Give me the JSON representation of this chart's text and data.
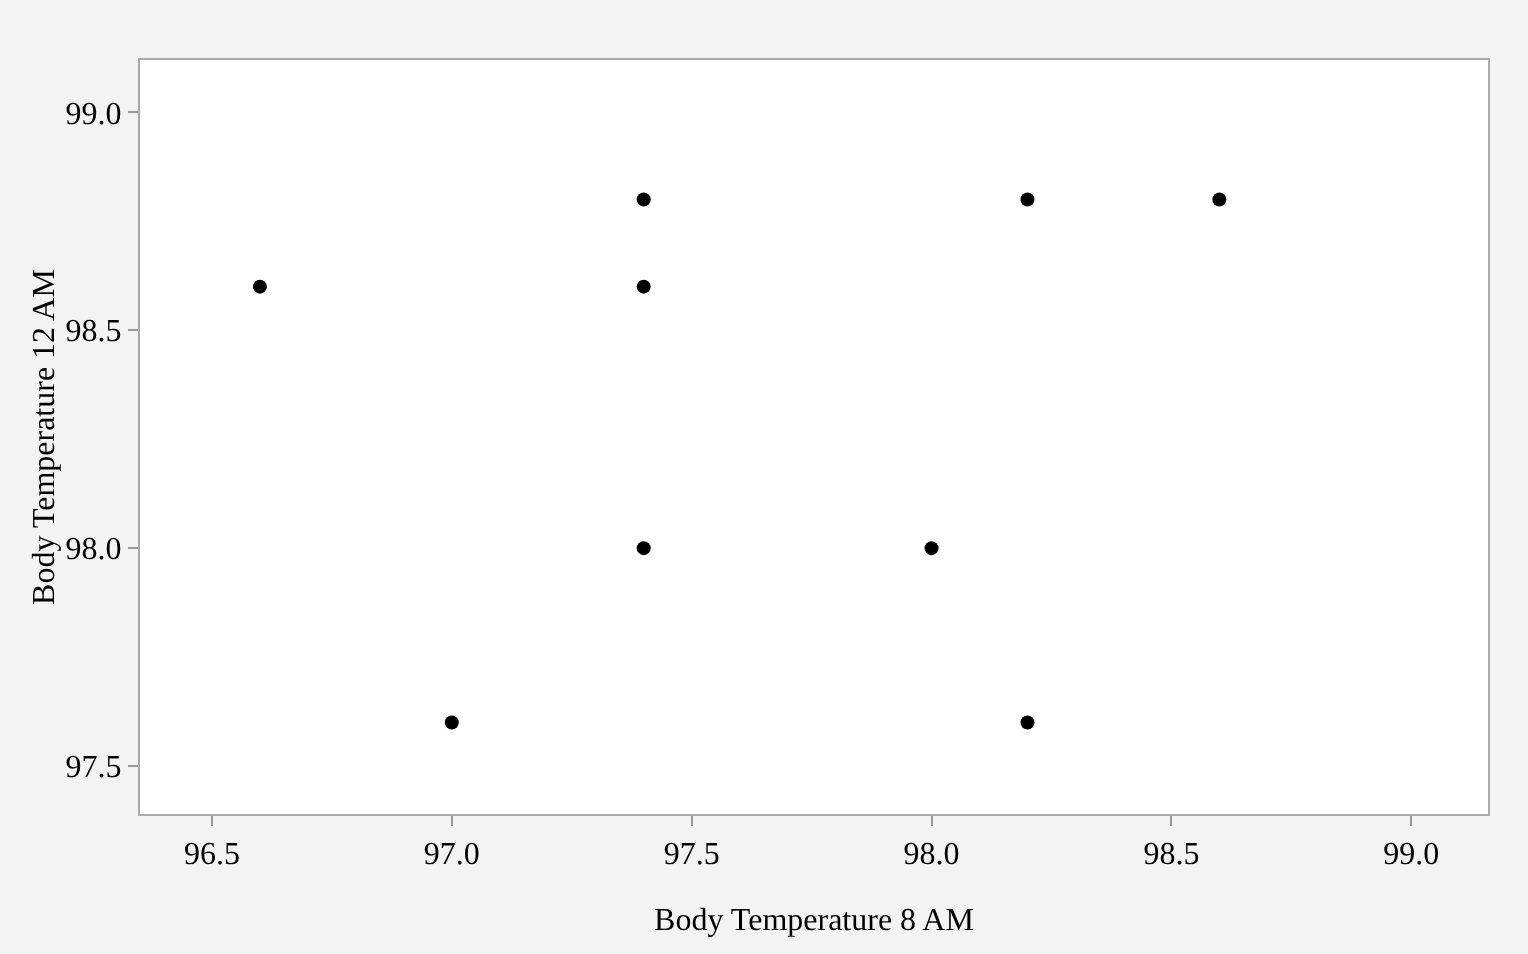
{
  "chart_data": {
    "type": "scatter",
    "xlabel": "Body Temperature 8 AM",
    "ylabel": "Body Temperature 12 AM",
    "x": [
      96.6,
      97.0,
      97.4,
      97.4,
      97.4,
      98.0,
      98.2,
      98.2,
      98.6
    ],
    "values": [
      98.6,
      97.6,
      98.8,
      98.6,
      98.0,
      98.0,
      98.8,
      97.6,
      98.8
    ],
    "color": "#000000",
    "marker": "circle",
    "grid": false,
    "xlim": [
      96.35,
      99.16
    ],
    "xticks": [
      {
        "value": 96.5,
        "label": "96.5"
      },
      {
        "value": 97,
        "label": "97.0"
      },
      {
        "value": 97.5,
        "label": "97.5"
      },
      {
        "value": 98,
        "label": "98.0"
      },
      {
        "value": 98.5,
        "label": "98.5"
      },
      {
        "value": 99,
        "label": "99.0"
      }
    ],
    "ylim": [
      97.39,
      99.12
    ],
    "yticks": [
      {
        "value": 97.5,
        "label": "97.5"
      },
      {
        "value": 98,
        "label": "98.0"
      },
      {
        "value": 98.5,
        "label": "98.5"
      },
      {
        "value": 99,
        "label": "99.0"
      }
    ]
  }
}
